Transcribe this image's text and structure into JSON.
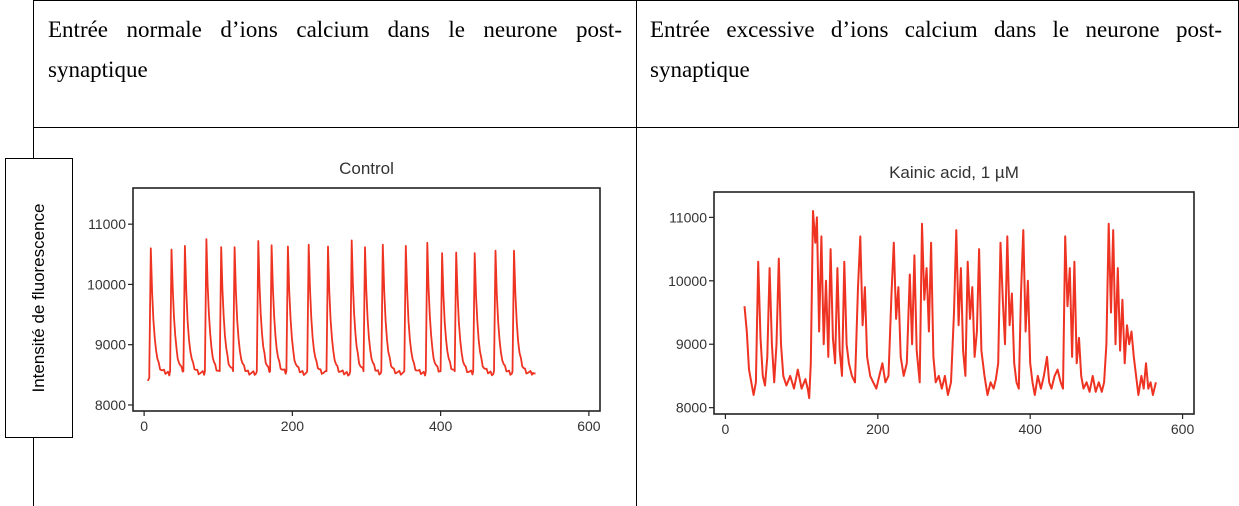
{
  "header": {
    "left": "Entrée normale d’ions calcium dans le neurone post-synaptique",
    "right": "Entrée excessive d’ions calcium dans le neurone post-synaptique"
  },
  "y_axis_label": "Intensité de fluorescence",
  "colors": {
    "trace": "#ee3322",
    "axis": "#222222",
    "border": "#000000"
  },
  "chart_data": [
    {
      "type": "line",
      "title": "Control",
      "xlabel": "",
      "ylabel": "",
      "xlim": [
        -15,
        615
      ],
      "ylim": [
        7900,
        11600
      ],
      "xticks": [
        0,
        200,
        400,
        600
      ],
      "yticks": [
        8000,
        9000,
        10000,
        11000
      ],
      "xtick_labels": [
        "0",
        "200",
        "400",
        "600"
      ],
      "ytick_labels": [
        "8000",
        "9000",
        "10000",
        "11000"
      ],
      "grid": false,
      "legend": "none",
      "series": [
        {
          "baseline": 8520,
          "start": 5,
          "end": 528,
          "peaks": [
            {
              "x": 9,
              "y": 10600
            },
            {
              "x": 37,
              "y": 10580
            },
            {
              "x": 55,
              "y": 10640
            },
            {
              "x": 84,
              "y": 10750
            },
            {
              "x": 104,
              "y": 10620
            },
            {
              "x": 122,
              "y": 10620
            },
            {
              "x": 154,
              "y": 10720
            },
            {
              "x": 172,
              "y": 10650
            },
            {
              "x": 194,
              "y": 10630
            },
            {
              "x": 222,
              "y": 10660
            },
            {
              "x": 248,
              "y": 10630
            },
            {
              "x": 280,
              "y": 10730
            },
            {
              "x": 298,
              "y": 10620
            },
            {
              "x": 322,
              "y": 10660
            },
            {
              "x": 353,
              "y": 10640
            },
            {
              "x": 382,
              "y": 10690
            },
            {
              "x": 402,
              "y": 10520
            },
            {
              "x": 421,
              "y": 10530
            },
            {
              "x": 446,
              "y": 10520
            },
            {
              "x": 474,
              "y": 10560
            },
            {
              "x": 499,
              "y": 10560
            }
          ]
        }
      ]
    },
    {
      "type": "line",
      "title": "Kainic acid, 1 µM",
      "xlabel": "",
      "ylabel": "",
      "xlim": [
        -15,
        615
      ],
      "ylim": [
        7900,
        11400
      ],
      "xticks": [
        0,
        200,
        400,
        600
      ],
      "yticks": [
        8000,
        9000,
        10000,
        11000
      ],
      "xtick_labels": [
        "0",
        "200",
        "400",
        "600"
      ],
      "ytick_labels": [
        "8000",
        "9000",
        "10000",
        "11000"
      ],
      "grid": false,
      "legend": "none",
      "series": [
        {
          "start": 25,
          "end": 565,
          "points": [
            [
              25,
              9600
            ],
            [
              28,
              9200
            ],
            [
              31,
              8600
            ],
            [
              34,
              8400
            ],
            [
              37,
              8200
            ],
            [
              40,
              8400
            ],
            [
              43,
              10300
            ],
            [
              46,
              9100
            ],
            [
              49,
              8500
            ],
            [
              52,
              8350
            ],
            [
              55,
              8800
            ],
            [
              58,
              10200
            ],
            [
              61,
              9000
            ],
            [
              64,
              8400
            ],
            [
              67,
              9000
            ],
            [
              70,
              10350
            ],
            [
              73,
              9000
            ],
            [
              76,
              8500
            ],
            [
              80,
              8350
            ],
            [
              85,
              8500
            ],
            [
              90,
              8300
            ],
            [
              95,
              8600
            ],
            [
              100,
              8300
            ],
            [
              105,
              8450
            ],
            [
              108,
              8300
            ],
            [
              110,
              8150
            ],
            [
              112,
              8700
            ],
            [
              115,
              11100
            ],
            [
              118,
              10600
            ],
            [
              120,
              11000
            ],
            [
              123,
              9200
            ],
            [
              126,
              10700
            ],
            [
              129,
              9000
            ],
            [
              132,
              10000
            ],
            [
              135,
              8800
            ],
            [
              138,
              10500
            ],
            [
              141,
              9100
            ],
            [
              144,
              8700
            ],
            [
              147,
              10200
            ],
            [
              150,
              8900
            ],
            [
              153,
              8500
            ],
            [
              156,
              10300
            ],
            [
              159,
              9000
            ],
            [
              162,
              8700
            ],
            [
              166,
              8500
            ],
            [
              170,
              8400
            ],
            [
              174,
              9900
            ],
            [
              177,
              10700
            ],
            [
              180,
              9300
            ],
            [
              183,
              9900
            ],
            [
              186,
              8800
            ],
            [
              190,
              8500
            ],
            [
              194,
              8400
            ],
            [
              198,
              8300
            ],
            [
              202,
              8500
            ],
            [
              206,
              8700
            ],
            [
              210,
              8400
            ],
            [
              214,
              8500
            ],
            [
              218,
              9800
            ],
            [
              221,
              10600
            ],
            [
              224,
              9400
            ],
            [
              227,
              9900
            ],
            [
              230,
              8800
            ],
            [
              234,
              8500
            ],
            [
              238,
              8700
            ],
            [
              242,
              10100
            ],
            [
              245,
              9000
            ],
            [
              248,
              10400
            ],
            [
              251,
              8900
            ],
            [
              255,
              8400
            ],
            [
              258,
              10900
            ],
            [
              261,
              9700
            ],
            [
              264,
              10200
            ],
            [
              267,
              9200
            ],
            [
              270,
              10600
            ],
            [
              273,
              8800
            ],
            [
              276,
              8400
            ],
            [
              280,
              8500
            ],
            [
              284,
              8300
            ],
            [
              288,
              8500
            ],
            [
              292,
              8200
            ],
            [
              296,
              8400
            ],
            [
              300,
              9500
            ],
            [
              303,
              10800
            ],
            [
              306,
              9300
            ],
            [
              309,
              10200
            ],
            [
              312,
              8900
            ],
            [
              315,
              8500
            ],
            [
              318,
              10300
            ],
            [
              321,
              9400
            ],
            [
              324,
              9900
            ],
            [
              327,
              8800
            ],
            [
              330,
              9200
            ],
            [
              333,
              10500
            ],
            [
              336,
              8900
            ],
            [
              340,
              8500
            ],
            [
              344,
              8200
            ],
            [
              348,
              8400
            ],
            [
              352,
              8300
            ],
            [
              355,
              8450
            ],
            [
              358,
              8700
            ],
            [
              361,
              10600
            ],
            [
              364,
              9700
            ],
            [
              367,
              9000
            ],
            [
              370,
              10700
            ],
            [
              373,
              9300
            ],
            [
              376,
              9800
            ],
            [
              379,
              8700
            ],
            [
              382,
              8400
            ],
            [
              385,
              8300
            ],
            [
              388,
              9800
            ],
            [
              391,
              10800
            ],
            [
              394,
              9200
            ],
            [
              397,
              10000
            ],
            [
              400,
              8700
            ],
            [
              403,
              8400
            ],
            [
              406,
              8200
            ],
            [
              410,
              8500
            ],
            [
              414,
              8300
            ],
            [
              418,
              8500
            ],
            [
              422,
              8800
            ],
            [
              425,
              8400
            ],
            [
              428,
              8300
            ],
            [
              432,
              8500
            ],
            [
              436,
              8600
            ],
            [
              440,
              8400
            ],
            [
              443,
              8300
            ],
            [
              446,
              10700
            ],
            [
              449,
              9600
            ],
            [
              452,
              10200
            ],
            [
              455,
              8800
            ],
            [
              458,
              10300
            ],
            [
              461,
              8700
            ],
            [
              464,
              9100
            ],
            [
              467,
              8500
            ],
            [
              470,
              8300
            ],
            [
              474,
              8400
            ],
            [
              478,
              8250
            ],
            [
              482,
              8500
            ],
            [
              486,
              8250
            ],
            [
              490,
              8400
            ],
            [
              494,
              8250
            ],
            [
              497,
              8400
            ],
            [
              500,
              9000
            ],
            [
              503,
              10900
            ],
            [
              506,
              9500
            ],
            [
              509,
              10800
            ],
            [
              512,
              9000
            ],
            [
              515,
              10200
            ],
            [
              518,
              8900
            ],
            [
              521,
              9700
            ],
            [
              524,
              8700
            ],
            [
              527,
              9300
            ],
            [
              530,
              9000
            ],
            [
              533,
              9200
            ],
            [
              536,
              8800
            ],
            [
              539,
              8500
            ],
            [
              542,
              8200
            ],
            [
              546,
              8500
            ],
            [
              549,
              8300
            ],
            [
              552,
              8700
            ],
            [
              555,
              8300
            ],
            [
              558,
              8400
            ],
            [
              561,
              8200
            ],
            [
              565,
              8400
            ]
          ]
        }
      ]
    }
  ]
}
